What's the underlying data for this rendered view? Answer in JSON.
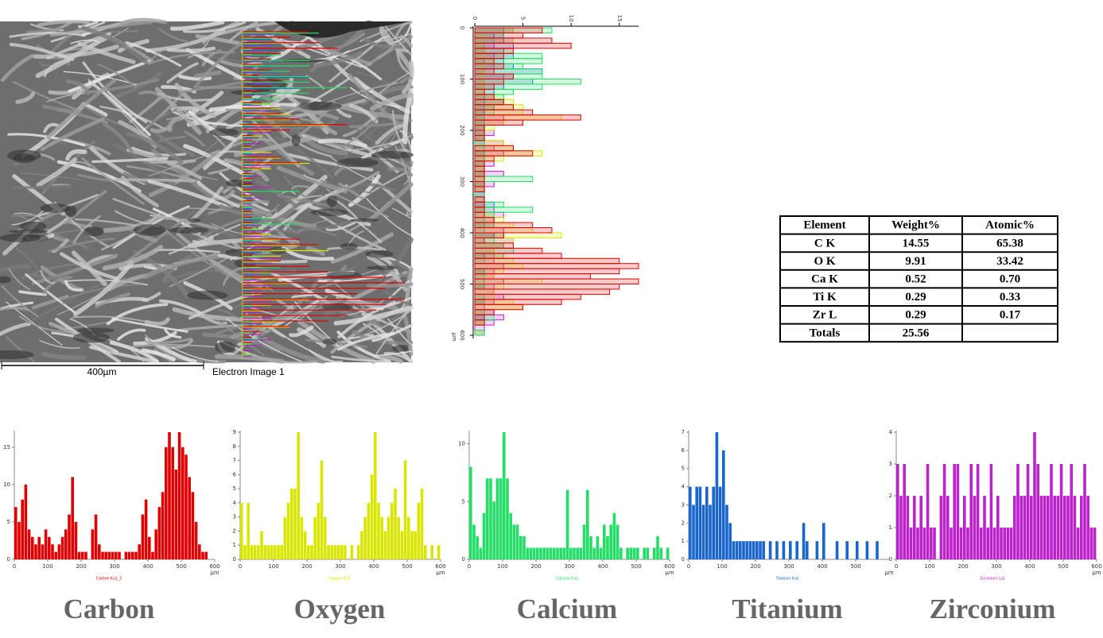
{
  "image": {
    "scale_bar": "400µm",
    "caption": "Electron Image 1"
  },
  "chart_data": [
    {
      "type": "bar",
      "title": "Carbon",
      "xlabel": "µm",
      "xlim": [
        0,
        600
      ],
      "ylim": [
        0,
        17
      ],
      "xticks": [
        0,
        100,
        200,
        300,
        400,
        500,
        600
      ],
      "yticks": [
        0,
        5,
        10,
        15
      ],
      "x": [
        0,
        10,
        20,
        30,
        40,
        50,
        60,
        70,
        80,
        90,
        100,
        110,
        120,
        130,
        140,
        150,
        160,
        170,
        180,
        190,
        200,
        210,
        220,
        230,
        240,
        250,
        260,
        270,
        280,
        290,
        300,
        310,
        320,
        330,
        340,
        350,
        360,
        370,
        380,
        390,
        400,
        410,
        420,
        430,
        440,
        450,
        460,
        470,
        480,
        490,
        500,
        510,
        520,
        530,
        540,
        550,
        560,
        570,
        580,
        590
      ],
      "series": [
        {
          "name": "Carbon Ka1_2",
          "color": "#e00000",
          "values": [
            7,
            5,
            8,
            10,
            4,
            3,
            2,
            3,
            2,
            4,
            3,
            2,
            1,
            2,
            3,
            4,
            6,
            11,
            5,
            1,
            1,
            1,
            0,
            4,
            6,
            2,
            1,
            1,
            1,
            1,
            1,
            1,
            0,
            1,
            1,
            1,
            1,
            2,
            6,
            8,
            3,
            1,
            4,
            7,
            9,
            15,
            17,
            15,
            12,
            17,
            15,
            14,
            11,
            9,
            5,
            2,
            1,
            1,
            0,
            0
          ]
        }
      ]
    },
    {
      "type": "bar",
      "title": "Oxygen",
      "xlabel": "µm",
      "xlim": [
        0,
        600
      ],
      "ylim": [
        0,
        9
      ],
      "xticks": [
        0,
        100,
        200,
        300,
        400,
        500,
        600
      ],
      "yticks": [
        0,
        1,
        2,
        3,
        4,
        5,
        6,
        7,
        8,
        9
      ],
      "x": [
        0,
        10,
        20,
        30,
        40,
        50,
        60,
        70,
        80,
        90,
        100,
        110,
        120,
        130,
        140,
        150,
        160,
        170,
        180,
        190,
        200,
        210,
        220,
        230,
        240,
        250,
        260,
        270,
        280,
        290,
        300,
        310,
        320,
        330,
        340,
        350,
        360,
        370,
        380,
        390,
        400,
        410,
        420,
        430,
        440,
        450,
        460,
        470,
        480,
        490,
        500,
        510,
        520,
        530,
        540,
        550,
        560,
        570,
        580,
        590
      ],
      "series": [
        {
          "name": "Oxygen Ka1",
          "color": "#d9e600",
          "values": [
            4,
            1,
            4,
            1,
            1,
            1,
            2,
            1,
            1,
            1,
            1,
            1,
            1,
            3,
            4,
            5,
            5,
            9,
            3,
            2,
            1,
            1,
            3,
            4,
            7,
            3,
            1,
            1,
            1,
            1,
            1,
            1,
            0,
            1,
            0,
            1,
            2,
            3,
            4,
            6,
            9,
            4,
            3,
            2,
            3,
            4,
            5,
            3,
            2,
            7,
            3,
            2,
            2,
            4,
            5,
            1,
            0,
            1,
            0,
            1
          ]
        }
      ]
    },
    {
      "type": "bar",
      "title": "Calcium",
      "xlabel": "µm",
      "xlim": [
        0,
        600
      ],
      "ylim": [
        0,
        11
      ],
      "xticks": [
        0,
        100,
        200,
        300,
        400,
        500,
        600
      ],
      "yticks": [
        0,
        5,
        10
      ],
      "x": [
        0,
        10,
        20,
        30,
        40,
        50,
        60,
        70,
        80,
        90,
        100,
        110,
        120,
        130,
        140,
        150,
        160,
        170,
        180,
        190,
        200,
        210,
        220,
        230,
        240,
        250,
        260,
        270,
        280,
        290,
        300,
        310,
        320,
        330,
        340,
        350,
        360,
        370,
        380,
        390,
        400,
        410,
        420,
        430,
        440,
        450,
        460,
        470,
        480,
        490,
        500,
        510,
        520,
        530,
        540,
        550,
        560,
        570,
        580,
        590
      ],
      "series": [
        {
          "name": "Calcium Ka1",
          "color": "#22dd66",
          "values": [
            8,
            3,
            2,
            1,
            4,
            7,
            7,
            5,
            7,
            7,
            11,
            7,
            4,
            3,
            3,
            2,
            2,
            1,
            1,
            1,
            1,
            1,
            1,
            1,
            1,
            1,
            1,
            1,
            1,
            6,
            1,
            1,
            1,
            1,
            3,
            6,
            2,
            1,
            2,
            1,
            3,
            2,
            3,
            4,
            3,
            1,
            0,
            1,
            1,
            1,
            1,
            0,
            1,
            1,
            0,
            1,
            2,
            1,
            0,
            1
          ]
        }
      ]
    },
    {
      "type": "bar",
      "title": "Titanium",
      "xlabel": "µm",
      "xlim": [
        0,
        600
      ],
      "ylim": [
        0,
        7
      ],
      "xticks": [
        0,
        100,
        200,
        300,
        400,
        500
      ],
      "yticks": [
        0,
        1,
        2,
        3,
        4,
        5,
        6,
        7
      ],
      "x": [
        0,
        10,
        20,
        30,
        40,
        50,
        60,
        70,
        80,
        90,
        100,
        110,
        120,
        130,
        140,
        150,
        160,
        170,
        180,
        190,
        200,
        210,
        220,
        230,
        240,
        250,
        260,
        270,
        280,
        290,
        300,
        310,
        320,
        330,
        340,
        350,
        360,
        370,
        380,
        390,
        400,
        410,
        420,
        430,
        440,
        450,
        460,
        470,
        480,
        490,
        500,
        510,
        520,
        530,
        540,
        550,
        560,
        570,
        580,
        590
      ],
      "series": [
        {
          "name": "Titanium Ka1",
          "color": "#1a66cc",
          "values": [
            4,
            3,
            4,
            4,
            3,
            4,
            3,
            4,
            7,
            4,
            6,
            3,
            2,
            1,
            1,
            1,
            1,
            1,
            1,
            1,
            1,
            1,
            1,
            0,
            1,
            0,
            1,
            0,
            1,
            0,
            1,
            0,
            1,
            0,
            2,
            1,
            0,
            0,
            1,
            0,
            2,
            0,
            0,
            0,
            1,
            0,
            0,
            1,
            0,
            0,
            1,
            0,
            0,
            1,
            0,
            0,
            1,
            0,
            0,
            0
          ]
        }
      ]
    },
    {
      "type": "bar",
      "title": "Zirconium",
      "xlabel": "µm",
      "xlim": [
        0,
        600
      ],
      "ylim": [
        0,
        4
      ],
      "xticks": [
        0,
        100,
        200,
        300,
        400,
        500,
        600
      ],
      "yticks": [
        0,
        1,
        2,
        3,
        4
      ],
      "x": [
        0,
        10,
        20,
        30,
        40,
        50,
        60,
        70,
        80,
        90,
        100,
        110,
        120,
        130,
        140,
        150,
        160,
        170,
        180,
        190,
        200,
        210,
        220,
        230,
        240,
        250,
        260,
        270,
        280,
        290,
        300,
        310,
        320,
        330,
        340,
        350,
        360,
        370,
        380,
        390,
        400,
        410,
        420,
        430,
        440,
        450,
        460,
        470,
        480,
        490,
        500,
        510,
        520,
        530,
        540,
        550,
        560,
        570,
        580,
        590
      ],
      "series": [
        {
          "name": "Zirconium La1",
          "color": "#bb22cc",
          "values": [
            3,
            2,
            3,
            2,
            1,
            2,
            1,
            2,
            1,
            3,
            1,
            1,
            0,
            2,
            3,
            2,
            1,
            3,
            3,
            1,
            2,
            1,
            3,
            2,
            3,
            1,
            2,
            1,
            3,
            1,
            2,
            1,
            1,
            1,
            1,
            2,
            3,
            2,
            2,
            3,
            2,
            4,
            3,
            2,
            2,
            2,
            3,
            2,
            2,
            3,
            2,
            2,
            3,
            2,
            1,
            2,
            3,
            2,
            1,
            1
          ]
        }
      ]
    },
    {
      "type": "linescan-overlay",
      "ylabel": "µm",
      "xlim": [
        0,
        17
      ],
      "ylim": [
        0,
        600
      ],
      "xticks": [
        0,
        5,
        10,
        15
      ],
      "yticks": [
        0,
        100,
        200,
        300,
        400,
        500,
        600
      ]
    }
  ],
  "table": {
    "header": [
      "Element",
      "Weight%",
      "Atomic%"
    ],
    "rows": [
      [
        "C K",
        "14.55",
        "65.38"
      ],
      [
        "O K",
        "9.91",
        "33.42"
      ],
      [
        "Ca K",
        "0.52",
        "0.70"
      ],
      [
        "Ti K",
        "0.29",
        "0.33"
      ],
      [
        "Zr L",
        "0.29",
        "0.17"
      ],
      [
        "Totals",
        "25.56"
      ]
    ]
  }
}
